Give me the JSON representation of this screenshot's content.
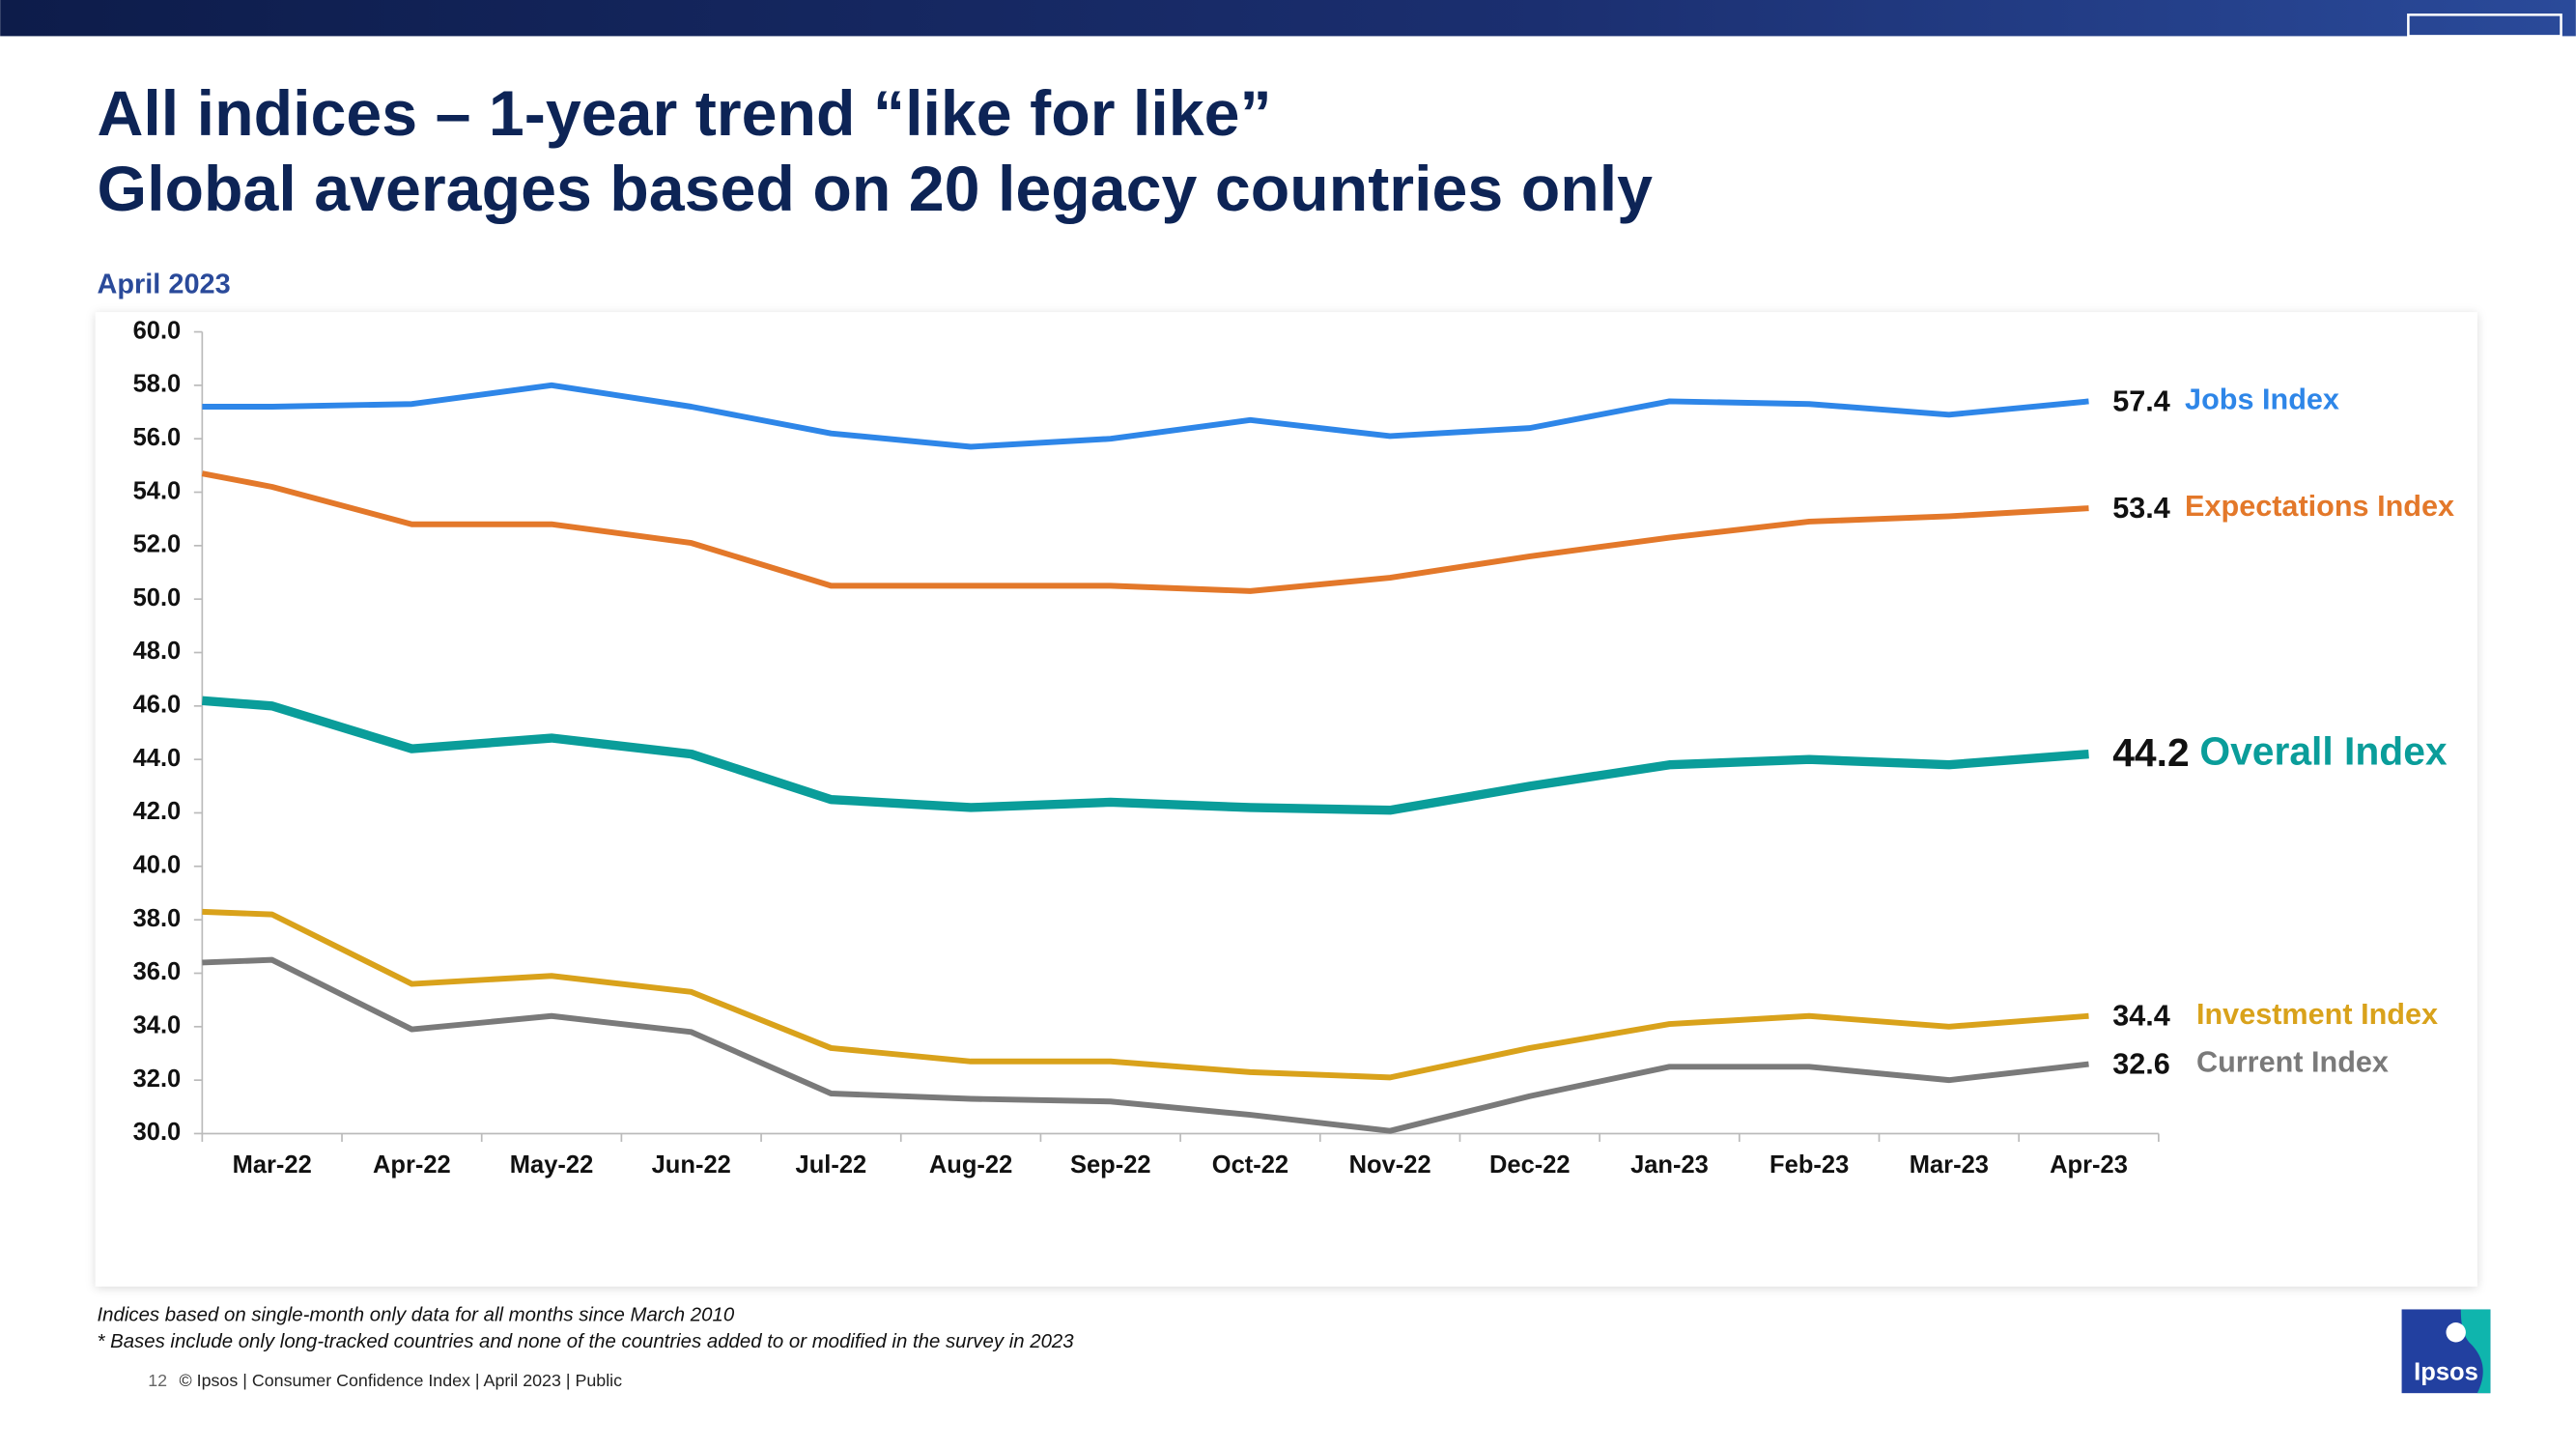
{
  "header": {
    "title_line1": "All indices – 1-year trend “like for like”",
    "title_line2": "Global averages based on 20 legacy countries only",
    "subtitle": "April 2023"
  },
  "chart_data": {
    "type": "line",
    "categories": [
      null,
      "Mar-22",
      "Apr-22",
      "May-22",
      "Jun-22",
      "Jul-22",
      "Aug-22",
      "Sep-22",
      "Oct-22",
      "Nov-22",
      "Dec-22",
      "Jan-23",
      "Feb-23",
      "Mar-23",
      "Apr-23"
    ],
    "series": [
      {
        "name": "Jobs Index",
        "color": "#2e86e8",
        "values": [
          57.2,
          57.2,
          57.3,
          58.0,
          57.2,
          56.2,
          55.7,
          56.0,
          56.7,
          56.1,
          56.4,
          57.4,
          57.3,
          56.9,
          57.4
        ]
      },
      {
        "name": "Expectations Index",
        "color": "#e3782a",
        "values": [
          54.7,
          54.2,
          52.8,
          52.8,
          52.1,
          50.5,
          50.5,
          50.5,
          50.3,
          50.8,
          51.6,
          52.3,
          52.9,
          53.1,
          53.4
        ]
      },
      {
        "name": "Overall Index",
        "color": "#0a9d9a",
        "values": [
          46.2,
          46.0,
          44.4,
          44.8,
          44.2,
          42.5,
          42.2,
          42.4,
          42.2,
          42.1,
          43.0,
          43.8,
          44.0,
          43.8,
          44.2
        ]
      },
      {
        "name": "Investment Index",
        "color": "#d9a21b",
        "values": [
          38.3,
          38.2,
          35.6,
          35.9,
          35.3,
          33.2,
          32.7,
          32.7,
          32.3,
          32.1,
          33.2,
          34.1,
          34.4,
          34.0,
          34.4
        ]
      },
      {
        "name": "Current Index",
        "color": "#7a7a7a",
        "values": [
          36.4,
          36.5,
          33.9,
          34.4,
          33.8,
          31.5,
          31.3,
          31.2,
          30.7,
          30.1,
          31.4,
          32.5,
          32.5,
          32.0,
          32.6
        ]
      }
    ],
    "ylim": [
      30,
      60
    ],
    "yticks": [
      {
        "value": 30,
        "label": "30.0"
      },
      {
        "value": 32,
        "label": "32.0"
      },
      {
        "value": 34,
        "label": "34.0"
      },
      {
        "value": 36,
        "label": "36.0"
      },
      {
        "value": 38,
        "label": "38.0"
      },
      {
        "value": 40,
        "label": "40.0"
      },
      {
        "value": 42,
        "label": "42.0"
      },
      {
        "value": 44,
        "label": "44.0"
      },
      {
        "value": 46,
        "label": "46.0"
      },
      {
        "value": 48,
        "label": "48.0"
      },
      {
        "value": 50,
        "label": "50.0"
      },
      {
        "value": 52,
        "label": "52.0"
      },
      {
        "value": 54,
        "label": "54.0"
      },
      {
        "value": 56,
        "label": "56.0"
      },
      {
        "value": 58,
        "label": "58.0"
      },
      {
        "value": 60,
        "label": "60.0"
      }
    ],
    "grid": false
  },
  "footer": {
    "note1": "Indices based on single-month only data for all months since March 2010",
    "note2": "* Bases include only long-tracked countries and none of the countries added to or modified in the survey in 2023",
    "page_number": "12",
    "credit": "© Ipsos | Consumer Confidence Index | April 2023 | Public",
    "logo": "Ipsos"
  }
}
